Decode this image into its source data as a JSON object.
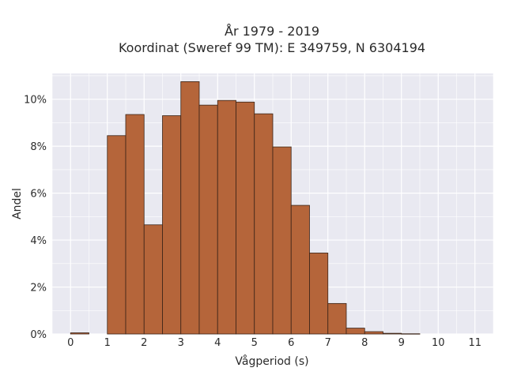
{
  "chart_data": {
    "type": "bar",
    "title_lines": [
      "År 1979 - 2019",
      "Koordinat (Sweref 99 TM): E 349759, N 6304194"
    ],
    "xlabel": "Vågperiod (s)",
    "ylabel": "Andel",
    "xlim": [
      -0.5,
      11.5
    ],
    "ylim": [
      0,
      0.111
    ],
    "x_ticks": [
      0,
      1,
      2,
      3,
      4,
      5,
      6,
      7,
      8,
      9,
      10,
      11
    ],
    "y_ticks": [
      0,
      0.02,
      0.04,
      0.06,
      0.08,
      0.1
    ],
    "y_tick_labels": [
      "0%",
      "2%",
      "4%",
      "6%",
      "8%",
      "10%"
    ],
    "grid": true,
    "bin_width": 0.5,
    "bin_starts": [
      0,
      0.5,
      1,
      1.5,
      2,
      2.5,
      3,
      3.5,
      4,
      4.5,
      5,
      5.5,
      6,
      6.5,
      7,
      7.5,
      8,
      8.5,
      9,
      9.5,
      10,
      10.5,
      11
    ],
    "values": [
      0.0005,
      0,
      0.0845,
      0.0935,
      0.0465,
      0.093,
      0.1075,
      0.0975,
      0.0995,
      0.0988,
      0.0938,
      0.0797,
      0.0548,
      0.0345,
      0.013,
      0.0025,
      0.001,
      0.0003,
      0.0001,
      0,
      0,
      0,
      0
    ],
    "bar_color": "#b5653a",
    "bar_edge_color": "#3a2418",
    "background_color": "#e9e9f1",
    "grid_color": "#ffffff"
  }
}
